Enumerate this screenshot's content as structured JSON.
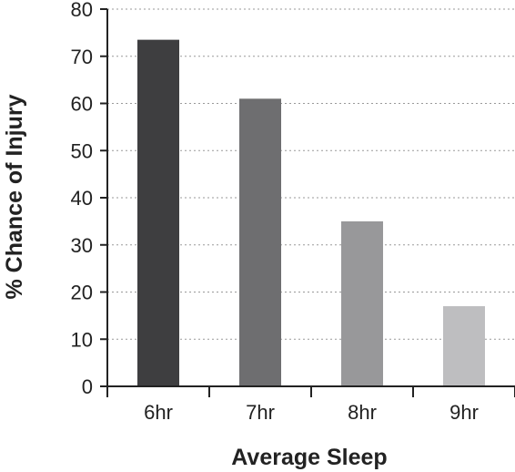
{
  "chart_data": {
    "type": "bar",
    "categories": [
      "6hr",
      "7hr",
      "8hr",
      "9hr"
    ],
    "values": [
      73.5,
      61,
      35,
      17
    ],
    "xlabel": "Average Sleep",
    "ylabel": "% Chance of Injury",
    "ylim": [
      0,
      80
    ],
    "yticks": [
      0,
      10,
      20,
      30,
      40,
      50,
      60,
      70,
      80
    ],
    "grid": true,
    "colors": [
      "#3e3e40",
      "#6e6e70",
      "#98989a",
      "#bebec0"
    ]
  }
}
